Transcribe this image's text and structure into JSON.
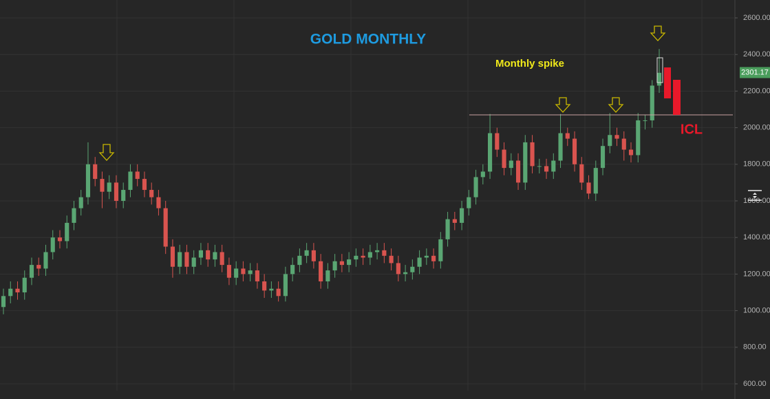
{
  "chart_data": {
    "type": "candlestick",
    "title": "GOLD MONTHLY",
    "annotations": [
      "Monthly spike",
      "ICL"
    ],
    "up_color": "#5aa673",
    "down_color": "#d9544f",
    "grid": true,
    "ylim": [
      600,
      2600
    ],
    "yticks": [
      {
        "value": 600,
        "label": "600.00"
      },
      {
        "value": 800,
        "label": "800.00"
      },
      {
        "value": 1000,
        "label": "1000.00"
      },
      {
        "value": 1200,
        "label": "1200.00"
      },
      {
        "value": 1400,
        "label": "1400.00"
      },
      {
        "value": 1600,
        "label": "1600.00"
      },
      {
        "value": 1800,
        "label": "1800.00"
      },
      {
        "value": 2000,
        "label": "2000.00"
      },
      {
        "value": 2200,
        "label": "2200.00"
      },
      {
        "value": 2400,
        "label": "2400.00"
      },
      {
        "value": 2600,
        "label": "2600.00"
      }
    ],
    "last_price": 2301.17,
    "level_line": 2070,
    "open": [
      1020,
      1080,
      1120,
      1100,
      1180,
      1250,
      1230,
      1320,
      1400,
      1380,
      1480,
      1560,
      1620,
      1800,
      1720,
      1650,
      1700,
      1600,
      1660,
      1760,
      1720,
      1660,
      1620,
      1560,
      1350,
      1240,
      1320,
      1240,
      1290,
      1330,
      1280,
      1320,
      1250,
      1180,
      1230,
      1200,
      1220,
      1160,
      1110,
      1120,
      1080,
      1200,
      1250,
      1300,
      1330,
      1270,
      1160,
      1220,
      1270,
      1250,
      1280,
      1300,
      1290,
      1320,
      1330,
      1300,
      1260,
      1200,
      1210,
      1240,
      1290,
      1300,
      1270,
      1390,
      1500,
      1480,
      1560,
      1620,
      1730,
      1760,
      1970,
      1880,
      1780,
      1820,
      1700,
      1920,
      1790,
      1790,
      1760,
      1820,
      1970,
      1940,
      1800,
      1700,
      1640,
      1780,
      1900,
      1960,
      1940,
      1880,
      1850,
      2040,
      2040,
      2230
    ],
    "high": [
      1120,
      1160,
      1160,
      1220,
      1290,
      1290,
      1360,
      1440,
      1440,
      1520,
      1600,
      1660,
      1920,
      1840,
      1760,
      1740,
      1740,
      1700,
      1800,
      1800,
      1760,
      1700,
      1660,
      1600,
      1390,
      1360,
      1360,
      1330,
      1370,
      1370,
      1360,
      1360,
      1290,
      1270,
      1270,
      1260,
      1260,
      1200,
      1160,
      1160,
      1240,
      1290,
      1340,
      1370,
      1370,
      1310,
      1260,
      1310,
      1310,
      1320,
      1340,
      1340,
      1360,
      1370,
      1370,
      1340,
      1300,
      1250,
      1280,
      1330,
      1340,
      1340,
      1430,
      1540,
      1540,
      1600,
      1660,
      1770,
      1800,
      2075,
      2000,
      1920,
      1860,
      1860,
      1960,
      1960,
      1830,
      1830,
      1860,
      2075,
      2000,
      1980,
      1840,
      1740,
      1820,
      1940,
      2080,
      2000,
      1980,
      1920,
      2080,
      2070,
      2260,
      2430
    ],
    "low": [
      980,
      1040,
      1060,
      1060,
      1140,
      1190,
      1190,
      1280,
      1340,
      1340,
      1440,
      1520,
      1580,
      1680,
      1560,
      1610,
      1560,
      1560,
      1620,
      1680,
      1620,
      1580,
      1520,
      1310,
      1180,
      1200,
      1200,
      1200,
      1250,
      1240,
      1240,
      1210,
      1140,
      1140,
      1160,
      1160,
      1120,
      1070,
      1070,
      1050,
      1050,
      1160,
      1210,
      1260,
      1230,
      1120,
      1120,
      1180,
      1210,
      1210,
      1240,
      1250,
      1250,
      1280,
      1260,
      1220,
      1160,
      1160,
      1170,
      1200,
      1250,
      1230,
      1230,
      1350,
      1440,
      1440,
      1520,
      1580,
      1690,
      1720,
      1840,
      1740,
      1740,
      1660,
      1660,
      1750,
      1750,
      1720,
      1720,
      1780,
      1900,
      1760,
      1660,
      1610,
      1600,
      1740,
      1860,
      1900,
      1820,
      1810,
      1810,
      1990,
      2000,
      2190
    ],
    "close": [
      1080,
      1120,
      1100,
      1180,
      1250,
      1230,
      1320,
      1400,
      1380,
      1480,
      1560,
      1620,
      1800,
      1720,
      1650,
      1700,
      1600,
      1660,
      1760,
      1720,
      1660,
      1620,
      1560,
      1350,
      1240,
      1320,
      1240,
      1290,
      1330,
      1280,
      1320,
      1250,
      1180,
      1230,
      1200,
      1220,
      1160,
      1110,
      1120,
      1080,
      1200,
      1250,
      1300,
      1330,
      1270,
      1160,
      1220,
      1270,
      1250,
      1280,
      1300,
      1290,
      1320,
      1330,
      1300,
      1260,
      1200,
      1210,
      1240,
      1290,
      1300,
      1270,
      1390,
      1500,
      1480,
      1560,
      1620,
      1730,
      1760,
      1970,
      1880,
      1780,
      1820,
      1700,
      1920,
      1790,
      1790,
      1760,
      1820,
      1970,
      1940,
      1800,
      1700,
      1640,
      1780,
      1900,
      1960,
      1940,
      1880,
      1850,
      2040,
      2040,
      2230,
      2300
    ]
  }
}
